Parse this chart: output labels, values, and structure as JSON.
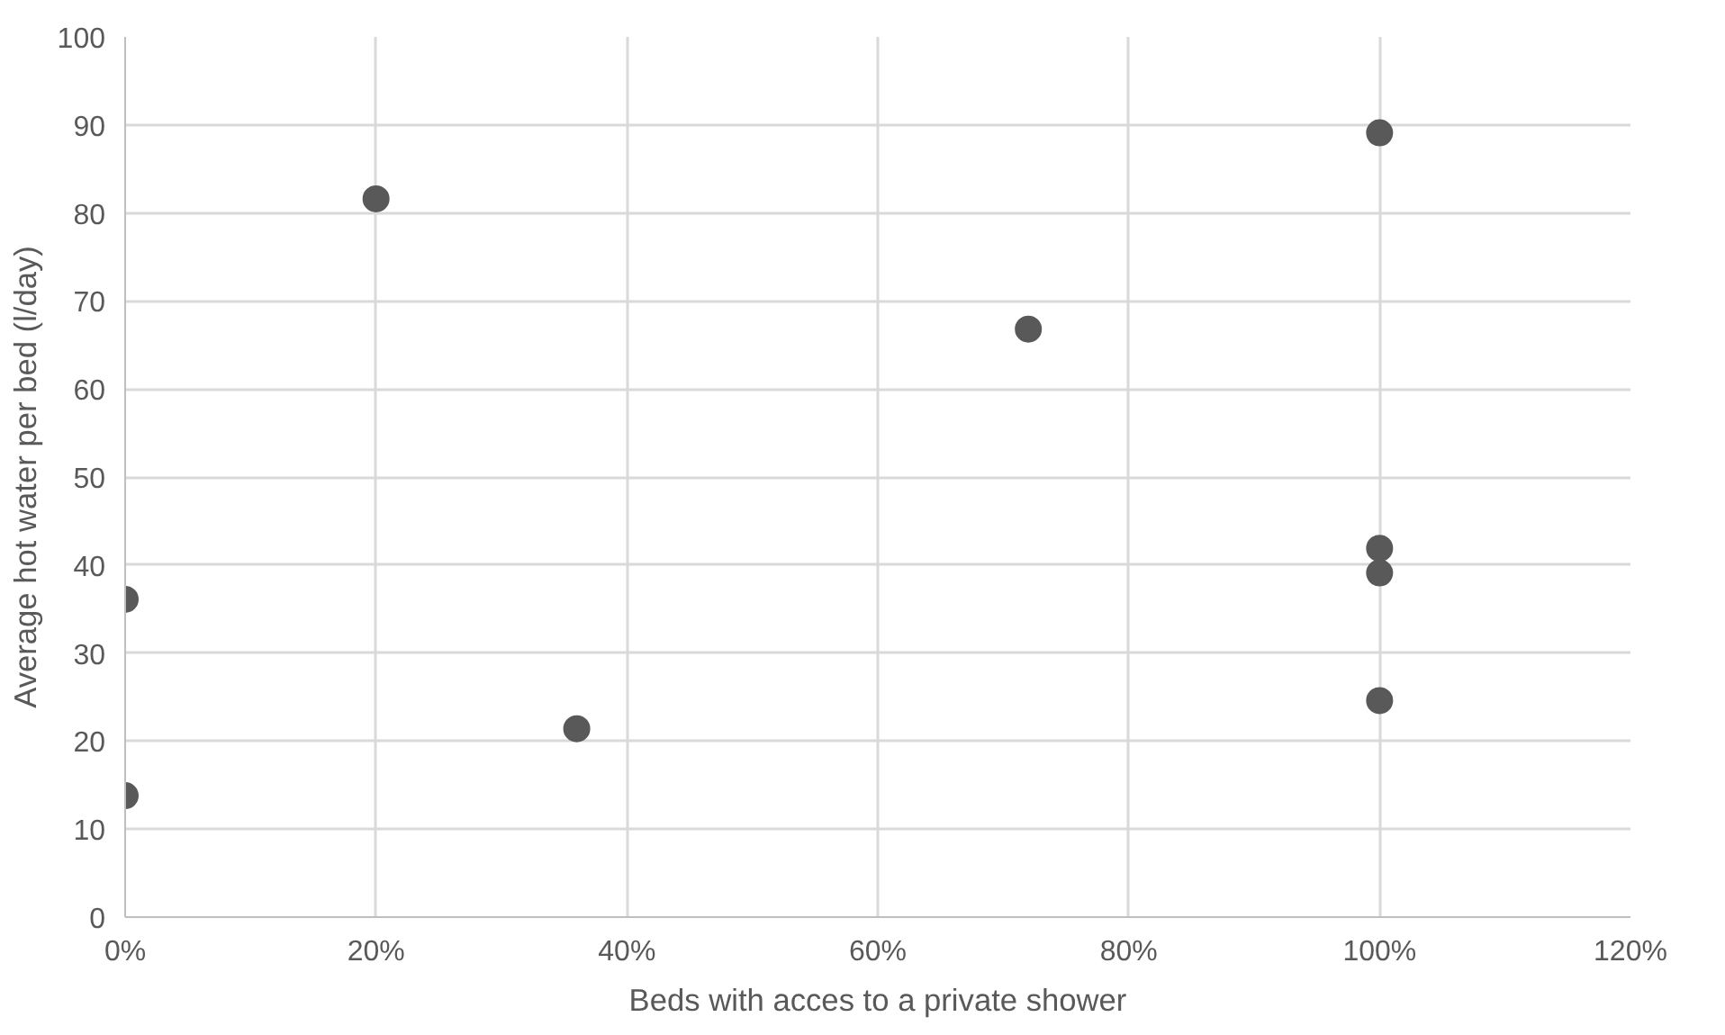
{
  "chart_data": {
    "type": "scatter",
    "xlabel": "Beds with acces to a private shower",
    "ylabel": "Average hot water per bed (l/day)",
    "x": [
      0,
      0,
      20,
      36,
      72,
      100,
      100,
      100,
      100
    ],
    "series": [
      {
        "color": "#595959",
        "values": [
          36.1,
          13.8,
          81.6,
          21.4,
          66.8,
          89.1,
          41.9,
          39.1,
          24.6
        ]
      }
    ],
    "xlim": [
      0,
      120
    ],
    "xticks": [
      {
        "value": 0,
        "label": "0%"
      },
      {
        "value": 20,
        "label": "20%"
      },
      {
        "value": 40,
        "label": "40%"
      },
      {
        "value": 60,
        "label": "60%"
      },
      {
        "value": 80,
        "label": "80%"
      },
      {
        "value": 100,
        "label": "100%"
      },
      {
        "value": 120,
        "label": "120%"
      }
    ],
    "ylim": [
      0,
      100
    ],
    "yticks": [
      0,
      10,
      20,
      30,
      40,
      50,
      60,
      70,
      80,
      90,
      100
    ],
    "grid": true,
    "marker": "circle"
  }
}
